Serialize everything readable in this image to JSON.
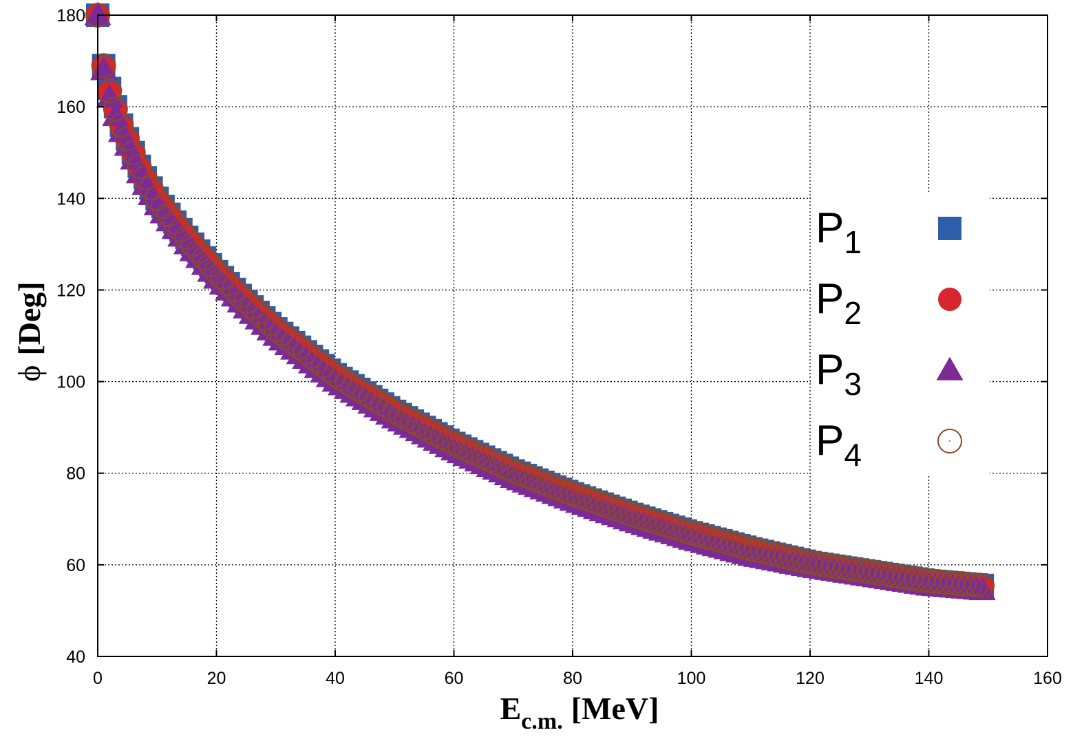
{
  "chart_data": {
    "type": "scatter",
    "title": "",
    "xlabel": {
      "main": "E",
      "sub": "c.m.",
      "unit": "[MeV]"
    },
    "ylabel": {
      "symbol": "ϕ",
      "unit": "[Deg]"
    },
    "xlim": [
      0,
      160
    ],
    "ylim": [
      40,
      180
    ],
    "xticks": [
      0,
      20,
      40,
      60,
      80,
      100,
      120,
      140,
      160
    ],
    "yticks": [
      40,
      60,
      80,
      100,
      120,
      140,
      160,
      180
    ],
    "grid": true,
    "legend_position": "right",
    "x": [
      0,
      1,
      2,
      3,
      4,
      5,
      6,
      7,
      8,
      10,
      12,
      15,
      20,
      25,
      30,
      40,
      50,
      60,
      70,
      80,
      90,
      100,
      110,
      120,
      130,
      140,
      149
    ],
    "series": [
      {
        "name": "P",
        "sub": "1",
        "marker": "square",
        "color": "#2e5eab",
        "values": [
          180,
          169,
          164,
          160,
          156,
          153,
          150,
          147,
          144.5,
          140,
          136.5,
          131.5,
          124,
          117.5,
          111.5,
          101.5,
          93.5,
          86.5,
          80.5,
          75.5,
          71,
          67,
          63.5,
          60.5,
          58.5,
          56.5,
          55.5
        ]
      },
      {
        "name": "P",
        "sub": "2",
        "marker": "circle",
        "color": "#d7262e",
        "values": [
          180,
          168.5,
          163,
          159,
          155.5,
          152.5,
          149.5,
          146.5,
          144,
          139.5,
          136,
          131,
          123.5,
          117,
          111,
          101,
          93,
          86,
          80,
          75,
          70.5,
          66.5,
          63,
          60,
          58,
          56,
          55
        ]
      },
      {
        "name": "P",
        "sub": "3",
        "marker": "triangle",
        "color": "#7b2a96",
        "values": [
          180,
          168,
          162,
          158,
          154.5,
          151.5,
          148.5,
          145.5,
          143,
          138.5,
          135,
          130,
          122.5,
          116,
          110,
          100,
          92,
          85,
          79,
          74,
          69.5,
          65.5,
          62,
          59.5,
          57.5,
          55.5,
          54.5
        ]
      },
      {
        "name": "P",
        "sub": "4",
        "marker": "open-circle",
        "color": "#8b4a2b",
        "values": [
          180,
          169,
          163.5,
          159.5,
          156,
          153,
          150,
          147,
          144.5,
          140,
          136.5,
          131.5,
          124,
          117.5,
          111.5,
          101.5,
          93.5,
          86.5,
          80.5,
          75.5,
          71,
          67,
          63.5,
          60.5,
          58.5,
          56.5,
          55.5
        ]
      }
    ]
  }
}
